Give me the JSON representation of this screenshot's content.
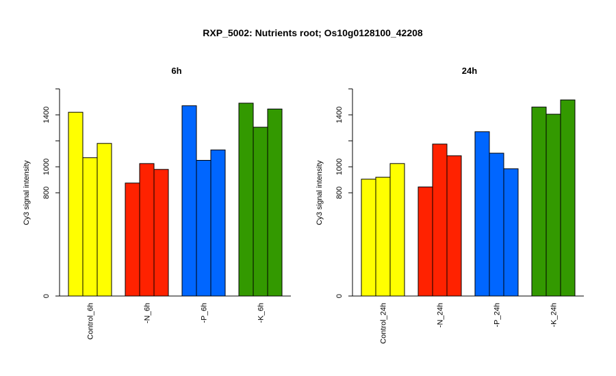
{
  "title": "RXP_5002: Nutrients root; Os10g0128100_42208",
  "chart_data": [
    {
      "type": "bar",
      "title": "6h",
      "ylabel": "Cy3 signal intensity",
      "y_ticks": [
        0,
        800,
        1000,
        1400
      ],
      "ylim": [
        0,
        1600
      ],
      "y_scale": "broken",
      "groups": [
        {
          "label": "Control_6h",
          "color": "#ffff00",
          "values": [
            1420,
            1070,
            1180
          ]
        },
        {
          "label": "-N_6h",
          "color": "#ff2200",
          "values": [
            875,
            1025,
            980
          ]
        },
        {
          "label": "-P_6h",
          "color": "#0066ff",
          "values": [
            1470,
            1050,
            1130
          ]
        },
        {
          "label": "-K_6h",
          "color": "#339900",
          "values": [
            1490,
            1305,
            1445
          ]
        }
      ]
    },
    {
      "type": "bar",
      "title": "24h",
      "ylabel": "Cy3 signal intensity",
      "y_ticks": [
        0,
        800,
        1000,
        1400
      ],
      "ylim": [
        0,
        1600
      ],
      "y_scale": "broken",
      "groups": [
        {
          "label": "Control_24h",
          "color": "#ffff00",
          "values": [
            905,
            920,
            1025
          ]
        },
        {
          "label": "-N_24h",
          "color": "#ff2200",
          "values": [
            845,
            1175,
            1085
          ]
        },
        {
          "label": "-P_24h",
          "color": "#0066ff",
          "values": [
            1270,
            1105,
            985
          ]
        },
        {
          "label": "-K_24h",
          "color": "#339900",
          "values": [
            1460,
            1405,
            1515
          ]
        }
      ]
    }
  ]
}
